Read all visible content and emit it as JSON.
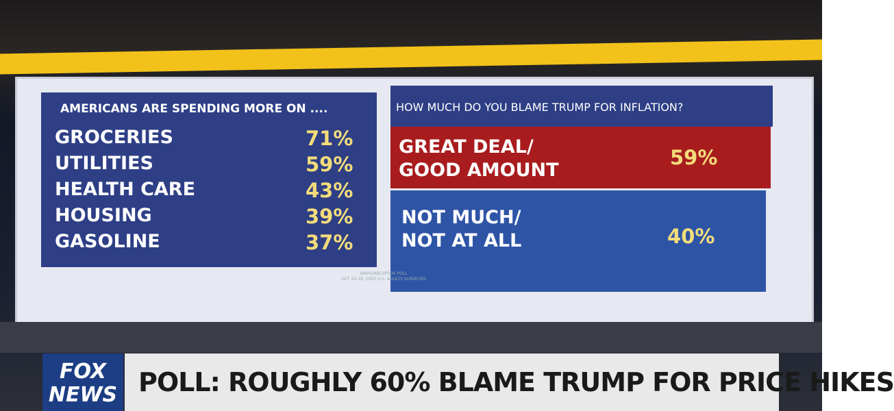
{
  "left_panel": {
    "title": "AMERICANS ARE SPENDING MORE ON ....",
    "rows": [
      [
        "GROCERIES",
        "71%"
      ],
      [
        "UTILITIES",
        "59%"
      ],
      [
        "HEALTH CARE",
        "43%"
      ],
      [
        "HOUSING",
        "39%"
      ],
      [
        "GASOLINE",
        "37%"
      ]
    ]
  },
  "right_panel": {
    "title": "HOW MUCH DO YOU BLAME TRUMP FOR INFLATION?",
    "rows": [
      {
        "label": [
          "GREAT DEAL/",
          "GOOD AMOUNT"
        ],
        "value": "59%"
      },
      {
        "label": [
          "NOT MUCH/",
          "NOT AT ALL"
        ],
        "value": "40%"
      }
    ]
  },
  "source": [
    "WAPO/ABC/IPSOS POLL",
    "OCT 24-28, 2025 U.S. ADULTS SURVEYED"
  ],
  "lower_third": {
    "logo": [
      "FOX",
      "NEWS"
    ],
    "headline": "POLL: ROUGHLY 60% BLAME TRUMP FOR PRICE HIKES"
  }
}
